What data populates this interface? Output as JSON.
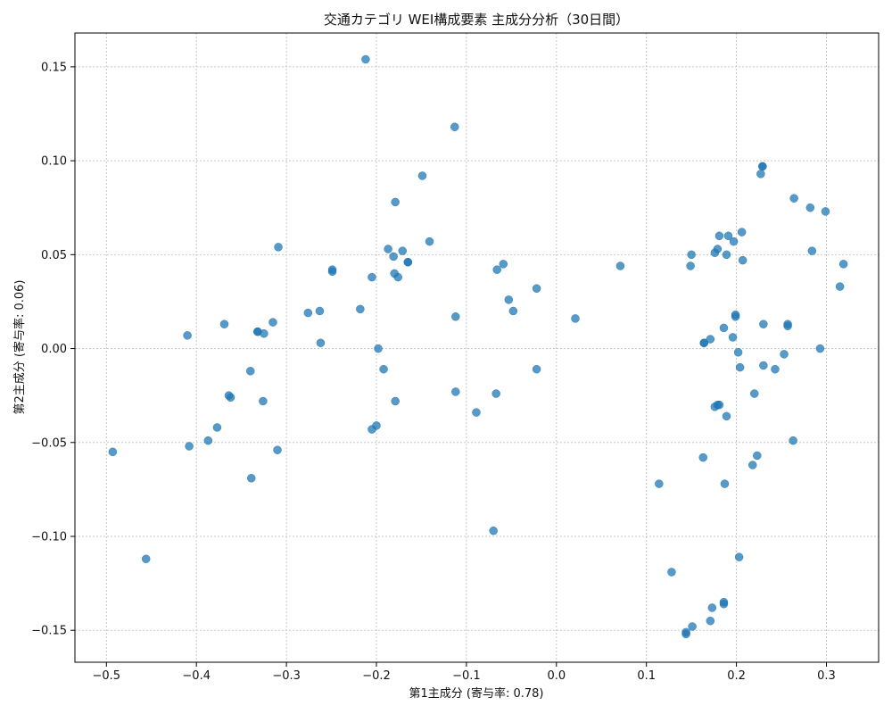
{
  "chart_data": {
    "type": "scatter",
    "title": "交通カテゴリ WEI構成要素 主成分分析（30日間）",
    "xlabel": "第1主成分 (寄与率: 0.78)",
    "ylabel": "第2主成分 (寄与率: 0.06)",
    "xlim": [
      -0.535,
      0.358
    ],
    "ylim": [
      -0.167,
      0.168
    ],
    "grid": true,
    "x_ticks": [
      -0.5,
      -0.4,
      -0.3,
      -0.2,
      -0.1,
      0.0,
      0.1,
      0.2,
      0.3
    ],
    "y_ticks": [
      -0.15,
      -0.1,
      -0.05,
      0.0,
      0.05,
      0.1,
      0.15
    ],
    "x_tick_labels": [
      "−0.5",
      "−0.4",
      "−0.3",
      "−0.2",
      "−0.1",
      "0.0",
      "0.1",
      "0.2",
      "0.3"
    ],
    "y_tick_labels": [
      "−0.15",
      "−0.10",
      "−0.05",
      "0.00",
      "0.05",
      "0.10",
      "0.15"
    ],
    "color": "#1f77b4",
    "points": [
      {
        "x": -0.212,
        "y": 0.154
      },
      {
        "x": -0.113,
        "y": 0.118
      },
      {
        "x": -0.149,
        "y": 0.092
      },
      {
        "x": -0.179,
        "y": 0.078
      },
      {
        "x": -0.141,
        "y": 0.057
      },
      {
        "x": -0.309,
        "y": 0.054
      },
      {
        "x": -0.187,
        "y": 0.053
      },
      {
        "x": -0.171,
        "y": 0.052
      },
      {
        "x": -0.181,
        "y": 0.049
      },
      {
        "x": -0.165,
        "y": 0.046
      },
      {
        "x": -0.165,
        "y": 0.046
      },
      {
        "x": -0.249,
        "y": 0.042
      },
      {
        "x": -0.249,
        "y": 0.041
      },
      {
        "x": -0.18,
        "y": 0.04
      },
      {
        "x": -0.205,
        "y": 0.038
      },
      {
        "x": -0.176,
        "y": 0.038
      },
      {
        "x": -0.059,
        "y": 0.045
      },
      {
        "x": -0.066,
        "y": 0.042
      },
      {
        "x": 0.071,
        "y": 0.044
      },
      {
        "x": -0.022,
        "y": 0.032
      },
      {
        "x": -0.053,
        "y": 0.026
      },
      {
        "x": -0.218,
        "y": 0.021
      },
      {
        "x": -0.048,
        "y": 0.02
      },
      {
        "x": -0.263,
        "y": 0.02
      },
      {
        "x": -0.276,
        "y": 0.019
      },
      {
        "x": -0.112,
        "y": 0.017
      },
      {
        "x": 0.021,
        "y": 0.016
      },
      {
        "x": -0.315,
        "y": 0.014
      },
      {
        "x": -0.369,
        "y": 0.013
      },
      {
        "x": -0.332,
        "y": 0.009
      },
      {
        "x": -0.332,
        "y": 0.009
      },
      {
        "x": -0.325,
        "y": 0.008
      },
      {
        "x": -0.41,
        "y": 0.007
      },
      {
        "x": -0.262,
        "y": 0.003
      },
      {
        "x": -0.198,
        "y": 0.0
      },
      {
        "x": -0.192,
        "y": -0.011
      },
      {
        "x": -0.34,
        "y": -0.012
      },
      {
        "x": -0.022,
        "y": -0.011
      },
      {
        "x": -0.112,
        "y": -0.023
      },
      {
        "x": -0.067,
        "y": -0.024
      },
      {
        "x": -0.364,
        "y": -0.025
      },
      {
        "x": -0.362,
        "y": -0.026
      },
      {
        "x": -0.179,
        "y": -0.028
      },
      {
        "x": -0.326,
        "y": -0.028
      },
      {
        "x": -0.089,
        "y": -0.034
      },
      {
        "x": -0.2,
        "y": -0.041
      },
      {
        "x": -0.205,
        "y": -0.043
      },
      {
        "x": -0.377,
        "y": -0.042
      },
      {
        "x": -0.387,
        "y": -0.049
      },
      {
        "x": -0.408,
        "y": -0.052
      },
      {
        "x": -0.31,
        "y": -0.054
      },
      {
        "x": -0.493,
        "y": -0.055
      },
      {
        "x": -0.339,
        "y": -0.069
      },
      {
        "x": -0.456,
        "y": -0.112
      },
      {
        "x": -0.07,
        "y": -0.097
      },
      {
        "x": 0.229,
        "y": 0.097
      },
      {
        "x": 0.229,
        "y": 0.097
      },
      {
        "x": 0.227,
        "y": 0.093
      },
      {
        "x": 0.264,
        "y": 0.08
      },
      {
        "x": 0.282,
        "y": 0.075
      },
      {
        "x": 0.299,
        "y": 0.073
      },
      {
        "x": 0.206,
        "y": 0.062
      },
      {
        "x": 0.181,
        "y": 0.06
      },
      {
        "x": 0.191,
        "y": 0.06
      },
      {
        "x": 0.197,
        "y": 0.057
      },
      {
        "x": 0.179,
        "y": 0.053
      },
      {
        "x": 0.284,
        "y": 0.052
      },
      {
        "x": 0.15,
        "y": 0.05
      },
      {
        "x": 0.176,
        "y": 0.051
      },
      {
        "x": 0.189,
        "y": 0.05
      },
      {
        "x": 0.207,
        "y": 0.047
      },
      {
        "x": 0.319,
        "y": 0.045
      },
      {
        "x": 0.149,
        "y": 0.044
      },
      {
        "x": 0.315,
        "y": 0.033
      },
      {
        "x": 0.199,
        "y": 0.018
      },
      {
        "x": 0.199,
        "y": 0.017
      },
      {
        "x": 0.257,
        "y": 0.013
      },
      {
        "x": 0.257,
        "y": 0.012
      },
      {
        "x": 0.23,
        "y": 0.013
      },
      {
        "x": 0.186,
        "y": 0.011
      },
      {
        "x": 0.196,
        "y": 0.006
      },
      {
        "x": 0.171,
        "y": 0.005
      },
      {
        "x": 0.164,
        "y": 0.003
      },
      {
        "x": 0.164,
        "y": 0.003
      },
      {
        "x": 0.293,
        "y": 0.0
      },
      {
        "x": 0.202,
        "y": -0.002
      },
      {
        "x": 0.253,
        "y": -0.003
      },
      {
        "x": 0.23,
        "y": -0.009
      },
      {
        "x": 0.204,
        "y": -0.01
      },
      {
        "x": 0.243,
        "y": -0.011
      },
      {
        "x": 0.22,
        "y": -0.024
      },
      {
        "x": 0.181,
        "y": -0.03
      },
      {
        "x": 0.179,
        "y": -0.03
      },
      {
        "x": 0.176,
        "y": -0.031
      },
      {
        "x": 0.189,
        "y": -0.036
      },
      {
        "x": 0.263,
        "y": -0.049
      },
      {
        "x": 0.223,
        "y": -0.057
      },
      {
        "x": 0.163,
        "y": -0.058
      },
      {
        "x": 0.218,
        "y": -0.062
      },
      {
        "x": 0.114,
        "y": -0.072
      },
      {
        "x": 0.187,
        "y": -0.072
      },
      {
        "x": 0.203,
        "y": -0.111
      },
      {
        "x": 0.128,
        "y": -0.119
      },
      {
        "x": 0.186,
        "y": -0.135
      },
      {
        "x": 0.186,
        "y": -0.136
      },
      {
        "x": 0.173,
        "y": -0.138
      },
      {
        "x": 0.171,
        "y": -0.145
      },
      {
        "x": 0.151,
        "y": -0.148
      },
      {
        "x": 0.144,
        "y": -0.151
      },
      {
        "x": 0.144,
        "y": -0.152
      }
    ]
  }
}
